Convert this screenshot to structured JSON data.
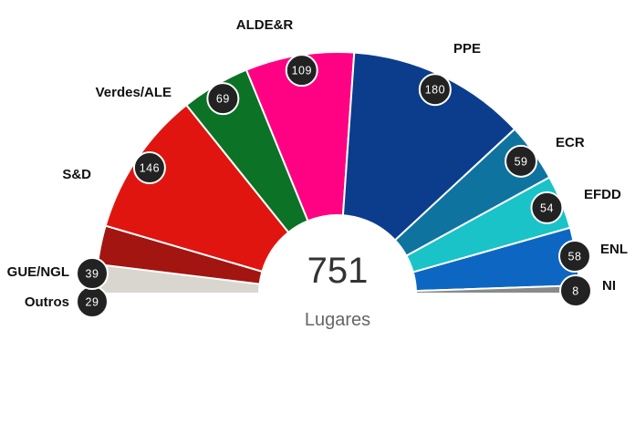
{
  "chart_data": {
    "type": "pie",
    "subtype": "parliament-hemicycle",
    "total": "751",
    "total_label": "Lugares",
    "series": [
      {
        "name": "Outros",
        "value": 29,
        "color": "#d9d6cf"
      },
      {
        "name": "GUE/NGL",
        "value": 39,
        "color": "#a31510"
      },
      {
        "name": "S&D",
        "value": 146,
        "color": "#e0150f"
      },
      {
        "name": "Verdes/ALE",
        "value": 69,
        "color": "#0b7226"
      },
      {
        "name": "ALDE&R",
        "value": 109,
        "color": "#ff0284"
      },
      {
        "name": "PPE",
        "value": 180,
        "color": "#0b3d8c"
      },
      {
        "name": "ECR",
        "value": 59,
        "color": "#0f73a0"
      },
      {
        "name": "EFDD",
        "value": 54,
        "color": "#19c3c8"
      },
      {
        "name": "ENL",
        "value": 58,
        "color": "#0d67c2"
      },
      {
        "name": "NI",
        "value": 8,
        "color": "#8a8a8a"
      }
    ],
    "legend": "labels beside slices"
  }
}
